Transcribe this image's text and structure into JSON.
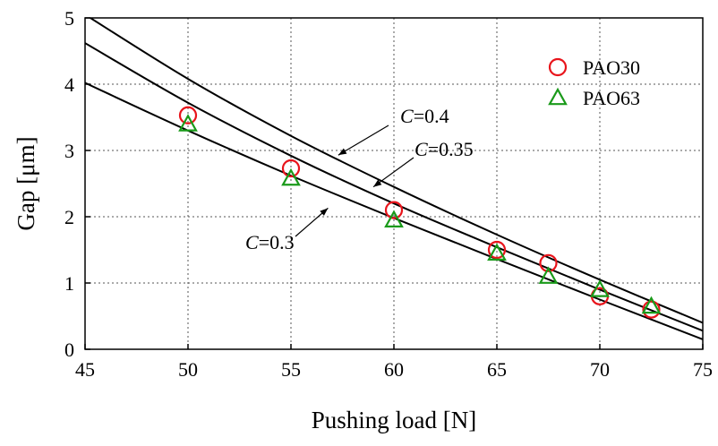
{
  "chart_data": {
    "type": "line",
    "xlabel": "Pushing load [N]",
    "ylabel": "Gap [μm]",
    "xlim": [
      45,
      75
    ],
    "ylim": [
      0,
      5
    ],
    "xticks": [
      45,
      50,
      55,
      60,
      65,
      70,
      75
    ],
    "yticks": [
      0,
      1,
      2,
      3,
      4,
      5
    ],
    "grid": true,
    "legend_position": "top-right",
    "curves": [
      {
        "label_var": "C",
        "label_val": "=0.4",
        "x": [
          45,
          50,
          55,
          60,
          65,
          70,
          75
        ],
        "y": [
          5.05,
          4.08,
          3.22,
          2.45,
          1.73,
          1.05,
          0.4
        ]
      },
      {
        "label_var": "C",
        "label_val": "=0.35",
        "x": [
          45,
          50,
          55,
          60,
          65,
          70,
          75
        ],
        "y": [
          4.62,
          3.72,
          2.92,
          2.2,
          1.54,
          0.9,
          0.28
        ]
      },
      {
        "label_var": "C",
        "label_val": "=0.3",
        "x": [
          45,
          50,
          55,
          60,
          65,
          70,
          75
        ],
        "y": [
          4.02,
          3.3,
          2.62,
          1.98,
          1.36,
          0.75,
          0.15
        ]
      }
    ],
    "series": [
      {
        "name": "PAO30",
        "marker": "circle",
        "color": "#e8141b",
        "x": [
          50,
          55,
          60,
          65,
          67.5,
          70,
          72.5
        ],
        "y": [
          3.53,
          2.73,
          2.1,
          1.5,
          1.3,
          0.8,
          0.6
        ]
      },
      {
        "name": "PAO63",
        "marker": "triangle",
        "color": "#1a9a1a",
        "x": [
          50,
          55,
          60,
          65,
          67.5,
          70,
          72.5
        ],
        "y": [
          3.4,
          2.58,
          1.95,
          1.45,
          1.1,
          0.9,
          0.65
        ]
      }
    ],
    "annotations": [
      {
        "curve": 0,
        "arrow_to": [
          57.3,
          2.93
        ]
      },
      {
        "curve": 1,
        "arrow_to": [
          59.0,
          2.45
        ]
      },
      {
        "curve": 2,
        "arrow_to": [
          56.8,
          2.13
        ]
      }
    ]
  }
}
